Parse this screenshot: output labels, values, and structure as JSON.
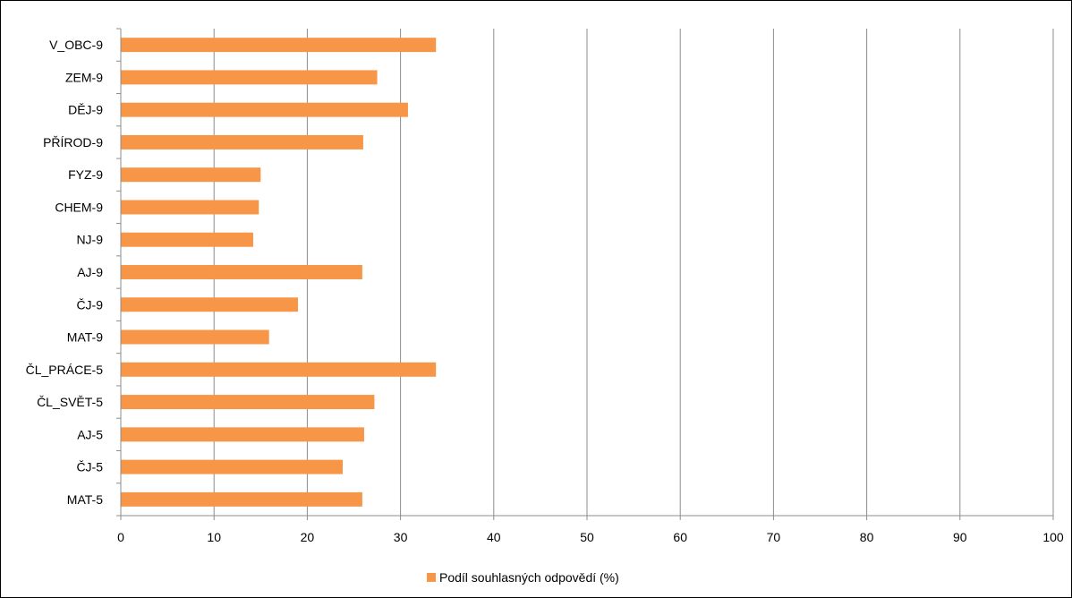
{
  "chart_data": {
    "type": "bar",
    "orientation": "horizontal",
    "categories": [
      "V_OBC-9",
      "ZEM-9",
      "DĚJ-9",
      "PŘÍROD-9",
      "FYZ-9",
      "CHEM-9",
      "NJ-9",
      "AJ-9",
      "ČJ-9",
      "MAT-9",
      "ČL_PRÁCE-5",
      "ČL_SVĚT-5",
      "AJ-5",
      "ČJ-5",
      "MAT-5"
    ],
    "series": [
      {
        "name": "Podíl souhlasných odpovědí (%)",
        "values": [
          33.8,
          27.5,
          30.8,
          26.0,
          15.0,
          14.8,
          14.2,
          25.9,
          19.0,
          15.9,
          33.8,
          27.2,
          26.1,
          23.8,
          25.9
        ],
        "color": "#f79646"
      }
    ],
    "xlim": [
      0,
      100
    ],
    "x_ticks": [
      "0",
      "10",
      "20",
      "30",
      "40",
      "50",
      "60",
      "70",
      "80",
      "90",
      "100"
    ],
    "grid": "vertical",
    "legend_position": "bottom",
    "title": "",
    "xlabel": "",
    "ylabel": ""
  }
}
